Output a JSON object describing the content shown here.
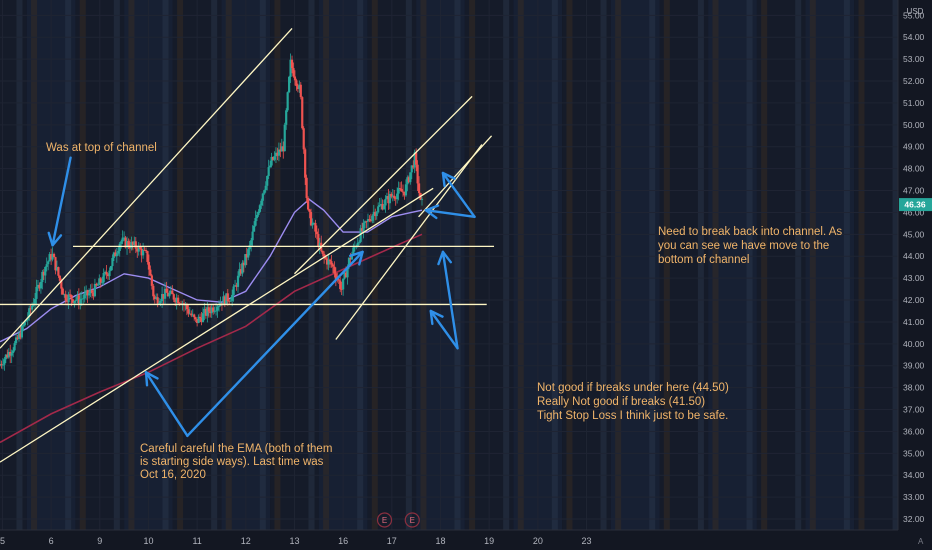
{
  "chart_data": {
    "type": "candlestick",
    "currency": "USD",
    "auto_label": "A",
    "last_price_label": "46.36",
    "last_price": 46.36,
    "ylim": [
      31.5,
      55.7
    ],
    "xlim": [
      4.95,
      23.4
    ],
    "y_ticks": [
      "32.00",
      "33.00",
      "34.00",
      "35.00",
      "36.00",
      "37.00",
      "38.00",
      "39.00",
      "40.00",
      "41.00",
      "42.00",
      "43.00",
      "44.00",
      "45.00",
      "46.00",
      "47.00",
      "48.00",
      "49.00",
      "50.00",
      "51.00",
      "52.00",
      "53.00",
      "54.00",
      "55.00"
    ],
    "x_ticks": [
      {
        "label": "5",
        "value": 5
      },
      {
        "label": "6",
        "value": 6
      },
      {
        "label": "9",
        "value": 7
      },
      {
        "label": "10",
        "value": 8
      },
      {
        "label": "11",
        "value": 9
      },
      {
        "label": "12",
        "value": 10
      },
      {
        "label": "13",
        "value": 11
      },
      {
        "label": "16",
        "value": 12
      },
      {
        "label": "17",
        "value": 13
      },
      {
        "label": "18",
        "value": 14
      },
      {
        "label": "19",
        "value": 15
      },
      {
        "label": "20",
        "value": 16
      },
      {
        "label": "23",
        "value": 17
      }
    ],
    "price_path": [
      [
        4.95,
        39.0
      ],
      [
        5.3,
        40.0
      ],
      [
        5.6,
        41.5
      ],
      [
        5.9,
        43.5
      ],
      [
        6.05,
        44.1
      ],
      [
        6.3,
        42.2
      ],
      [
        6.6,
        42.0
      ],
      [
        6.9,
        42.4
      ],
      [
        7.2,
        43.3
      ],
      [
        7.45,
        44.7
      ],
      [
        7.8,
        44.4
      ],
      [
        8.0,
        44.0
      ],
      [
        8.15,
        42.0
      ],
      [
        8.4,
        42.3
      ],
      [
        8.7,
        42.0
      ],
      [
        9.0,
        41.0
      ],
      [
        9.2,
        41.4
      ],
      [
        9.5,
        41.9
      ],
      [
        9.75,
        42.2
      ],
      [
        9.95,
        43.5
      ],
      [
        10.1,
        44.3
      ],
      [
        10.3,
        46.3
      ],
      [
        10.55,
        48.3
      ],
      [
        10.8,
        49.0
      ],
      [
        10.95,
        52.8
      ],
      [
        11.15,
        51.5
      ],
      [
        11.3,
        46.0
      ],
      [
        11.45,
        45.2
      ],
      [
        11.6,
        44.0
      ],
      [
        11.8,
        43.6
      ],
      [
        12.0,
        42.5
      ],
      [
        12.15,
        43.8
      ],
      [
        12.4,
        45.1
      ],
      [
        12.65,
        46.0
      ],
      [
        12.9,
        46.5
      ],
      [
        13.05,
        46.8
      ],
      [
        13.3,
        47.0
      ],
      [
        13.5,
        48.5
      ],
      [
        13.62,
        46.4
      ]
    ],
    "ema_fast": [
      [
        4.95,
        40.1
      ],
      [
        5.5,
        40.7
      ],
      [
        6.0,
        41.6
      ],
      [
        6.5,
        42.2
      ],
      [
        7.0,
        42.6
      ],
      [
        7.5,
        43.2
      ],
      [
        8.0,
        43.0
      ],
      [
        8.5,
        42.5
      ],
      [
        9.0,
        42.0
      ],
      [
        9.5,
        41.9
      ],
      [
        10.0,
        42.4
      ],
      [
        10.5,
        44.0
      ],
      [
        11.0,
        46.0
      ],
      [
        11.3,
        46.6
      ],
      [
        11.6,
        46.1
      ],
      [
        12.0,
        45.1
      ],
      [
        12.5,
        45.1
      ],
      [
        13.0,
        45.8
      ],
      [
        13.4,
        46.0
      ],
      [
        13.62,
        46.1
      ]
    ],
    "ema_slow": [
      [
        4.95,
        35.5
      ],
      [
        6.0,
        36.8
      ],
      [
        7.0,
        37.8
      ],
      [
        8.0,
        38.7
      ],
      [
        9.0,
        39.8
      ],
      [
        10.0,
        40.8
      ],
      [
        11.0,
        42.4
      ],
      [
        12.0,
        43.4
      ],
      [
        13.0,
        44.4
      ],
      [
        13.62,
        45.0
      ]
    ],
    "drawn_lines": [
      {
        "name": "upper-channel-line",
        "x1": 4.95,
        "y1": 39.8,
        "x2": 10.95,
        "y2": 54.4
      },
      {
        "name": "lower-channel-line",
        "x1": 4.95,
        "y1": 34.6,
        "x2": 13.85,
        "y2": 47.1
      },
      {
        "name": "resistance-line",
        "x1": 6.45,
        "y1": 44.45,
        "x2": 15.1,
        "y2": 44.45
      },
      {
        "name": "support-line",
        "x1": 4.95,
        "y1": 41.8,
        "x2": 14.95,
        "y2": 41.8
      },
      {
        "name": "new-channel-upper-line",
        "x1": 11.0,
        "y1": 43.2,
        "x2": 14.65,
        "y2": 51.3
      },
      {
        "name": "new-channel-lower-line",
        "x1": 11.85,
        "y1": 40.2,
        "x2": 14.85,
        "y2": 49.1
      },
      {
        "name": "small-channel-top-line",
        "x1": 13.55,
        "y1": 45.8,
        "x2": 15.05,
        "y2": 49.5
      }
    ],
    "arrows": [
      {
        "name": "arrow-top-of-channel",
        "x1": 6.4,
        "y1": 48.5,
        "x2": 6.03,
        "y2": 44.5
      },
      {
        "name": "arrow-ema-left",
        "x1": 8.8,
        "y1": 35.8,
        "x2": 7.95,
        "y2": 38.7
      },
      {
        "name": "arrow-ema-right",
        "x1": 8.8,
        "y1": 35.8,
        "x2": 12.4,
        "y2": 44.2
      },
      {
        "name": "arrow-break-back-upper",
        "x1": 14.7,
        "y1": 45.8,
        "x2": 14.05,
        "y2": 47.8
      },
      {
        "name": "arrow-break-back-lower",
        "x1": 14.7,
        "y1": 45.8,
        "x2": 13.7,
        "y2": 46.1
      },
      {
        "name": "arrow-breaks-upper",
        "x1": 14.35,
        "y1": 39.8,
        "x2": 14.05,
        "y2": 44.2
      },
      {
        "name": "arrow-breaks-lower",
        "x1": 14.35,
        "y1": 39.8,
        "x2": 13.8,
        "y2": 41.5
      }
    ],
    "annotations": {
      "top_of_channel": [
        "Was at top of channel"
      ],
      "break_back": [
        "Need to break back into channel. As",
        "you can see we have move to the",
        "bottom of channel"
      ],
      "breaks_under": [
        "Not good if breaks under here (44.50)",
        "Really Not good if breaks (41.50)",
        "Tight Stop Loss I think just to be safe."
      ],
      "ema_note": [
        "Careful careful the EMA (both of them",
        "is starting side ways). Last time was",
        "Oct 16, 2020"
      ]
    },
    "event_markers": [
      {
        "label": "E",
        "x": 12.85
      },
      {
        "label": "E",
        "x": 13.42
      }
    ],
    "colors": {
      "background": "#131722",
      "up": "#26a69a",
      "down": "#ef5350",
      "ema_fast": "#9c8cf0",
      "ema_slow": "#a3294a",
      "drawing": "#fff7c4",
      "arrow": "#2f8fe8",
      "annotation": "#f0b46a",
      "price_badge": "#26a69a"
    }
  }
}
